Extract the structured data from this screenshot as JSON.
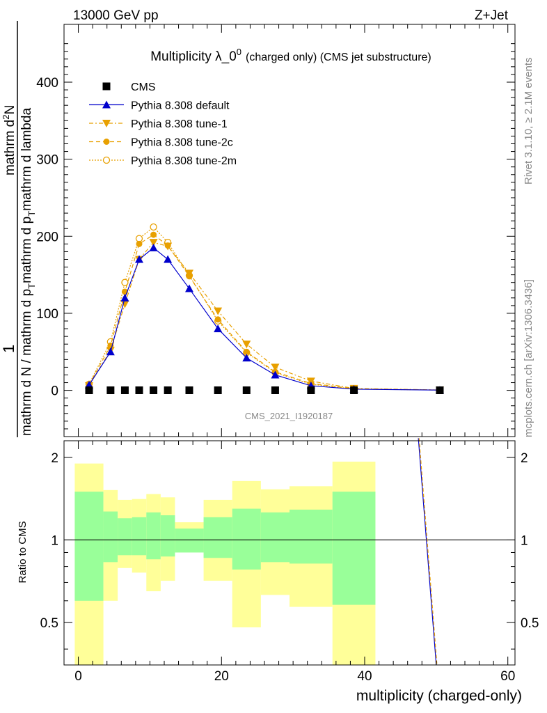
{
  "header": {
    "left": "13000 GeV pp",
    "right": "Z+Jet"
  },
  "side_text": {
    "top": "Rivet 3.1.10, ≥ 2.1M events",
    "bottom": "mcplots.cern.ch [arXiv:1306.3436]"
  },
  "watermark": "CMS_2021_I1920187",
  "colors": {
    "default": "#0000cc",
    "tunes": "#e8a000",
    "band_inner": "#99ff99",
    "band_outer": "#ffff99",
    "data": "#000000"
  },
  "chart_data": [
    {
      "type": "line",
      "title_main": "Multiplicity λ_0",
      "title_sup": "0",
      "title_rest": "(charged only) (CMS jet substructure)",
      "ylabel": {
        "l1": "1",
        "l2": "mathrm d N / mathrm d p",
        "l2_sub": "T",
        "l2_rest": "mathrm d p",
        "l2_sub2": "T",
        "l2_end": "mathrm d lambda",
        "l3": "mathrm d",
        "l3_sup": "2",
        "l3_end": "N"
      },
      "ylim": [
        -60,
        475
      ],
      "yticks": [
        0,
        100,
        200,
        300,
        400
      ],
      "x": [
        1.5,
        4.5,
        6.5,
        8.5,
        10.5,
        12.5,
        15.5,
        19.5,
        23.5,
        27.5,
        32.5,
        38.5,
        50.5
      ],
      "legend": [
        "CMS",
        "Pythia 8.308 default",
        "Pythia 8.308 tune-1",
        "Pythia 8.308 tune-2c",
        "Pythia 8.308 tune-2m"
      ],
      "series": [
        {
          "name": "CMS",
          "marker": "square",
          "values": [
            0.1,
            0.1,
            0.1,
            0.1,
            0.1,
            0.1,
            0.1,
            0.1,
            0.1,
            0.1,
            0.1,
            0.1,
            0.1
          ]
        },
        {
          "name": "Pythia 8.308 default",
          "marker": "triangle-up",
          "values": [
            7,
            50,
            120,
            170,
            185,
            170,
            132,
            80,
            42,
            20,
            6,
            1.5,
            0.3
          ]
        },
        {
          "name": "Pythia 8.308 tune-1",
          "marker": "triangle-down",
          "values": [
            6,
            52,
            112,
            170,
            192,
            187,
            152,
            103,
            60,
            30,
            12,
            2.5,
            0.5
          ]
        },
        {
          "name": "Pythia 8.308 tune-2c",
          "marker": "circle",
          "values": [
            7,
            58,
            128,
            190,
            202,
            188,
            148,
            92,
            50,
            24,
            9,
            2,
            0.4
          ]
        },
        {
          "name": "Pythia 8.308 tune-2m",
          "marker": "circle-open",
          "values": [
            8,
            63,
            140,
            197,
            212,
            192,
            149,
            90,
            49,
            23,
            8,
            1.8,
            0.4
          ]
        }
      ]
    },
    {
      "type": "area",
      "ylabel": "Ratio to CMS",
      "xlabel": "multiplicity (charged-only)",
      "xlim": [
        -2,
        61
      ],
      "xticks": [
        0,
        20,
        40,
        60
      ],
      "ylim": [
        0.35,
        2.3
      ],
      "yticks": [
        0.5,
        1,
        2
      ],
      "ytick_labels": [
        "0.5",
        "1",
        "2"
      ],
      "bins": [
        {
          "x": [
            -0.5,
            3.5
          ],
          "inner": [
            0.6,
            1.5
          ],
          "outer": [
            0.3,
            1.9
          ]
        },
        {
          "x": [
            3.5,
            5.5
          ],
          "inner": [
            0.83,
            1.27
          ],
          "outer": [
            0.6,
            1.52
          ]
        },
        {
          "x": [
            5.5,
            7.5
          ],
          "inner": [
            0.88,
            1.2
          ],
          "outer": [
            0.79,
            1.4
          ]
        },
        {
          "x": [
            7.5,
            9.5
          ],
          "inner": [
            0.88,
            1.21
          ],
          "outer": [
            0.76,
            1.41
          ]
        },
        {
          "x": [
            9.5,
            11.5
          ],
          "inner": [
            0.85,
            1.26
          ],
          "outer": [
            0.65,
            1.47
          ]
        },
        {
          "x": [
            11.5,
            13.5
          ],
          "inner": [
            0.87,
            1.23
          ],
          "outer": [
            0.71,
            1.43
          ]
        },
        {
          "x": [
            13.5,
            17.5
          ],
          "inner": [
            0.9,
            1.1
          ],
          "outer": [
            0.9,
            1.16
          ]
        },
        {
          "x": [
            17.5,
            21.5
          ],
          "inner": [
            0.86,
            1.21
          ],
          "outer": [
            0.71,
            1.4
          ]
        },
        {
          "x": [
            21.5,
            25.5
          ],
          "inner": [
            0.78,
            1.3
          ],
          "outer": [
            0.48,
            1.64
          ]
        },
        {
          "x": [
            25.5,
            29.5
          ],
          "inner": [
            0.83,
            1.26
          ],
          "outer": [
            0.63,
            1.53
          ]
        },
        {
          "x": [
            29.5,
            35.5
          ],
          "inner": [
            0.82,
            1.29
          ],
          "outer": [
            0.57,
            1.57
          ]
        },
        {
          "x": [
            35.5,
            41.5
          ],
          "inner": [
            0.58,
            1.5
          ],
          "outer": [
            0.3,
            1.93
          ]
        }
      ],
      "lines": [
        {
          "name": "Pythia 8.308 default",
          "x": [
            47.5,
            50
          ],
          "y": [
            2.35,
            0.35
          ]
        },
        {
          "name": "Pythia 8.308 tune-2c",
          "x": [
            47.6,
            50.1
          ],
          "y": [
            2.35,
            0.35
          ]
        }
      ],
      "reference": 1
    }
  ]
}
